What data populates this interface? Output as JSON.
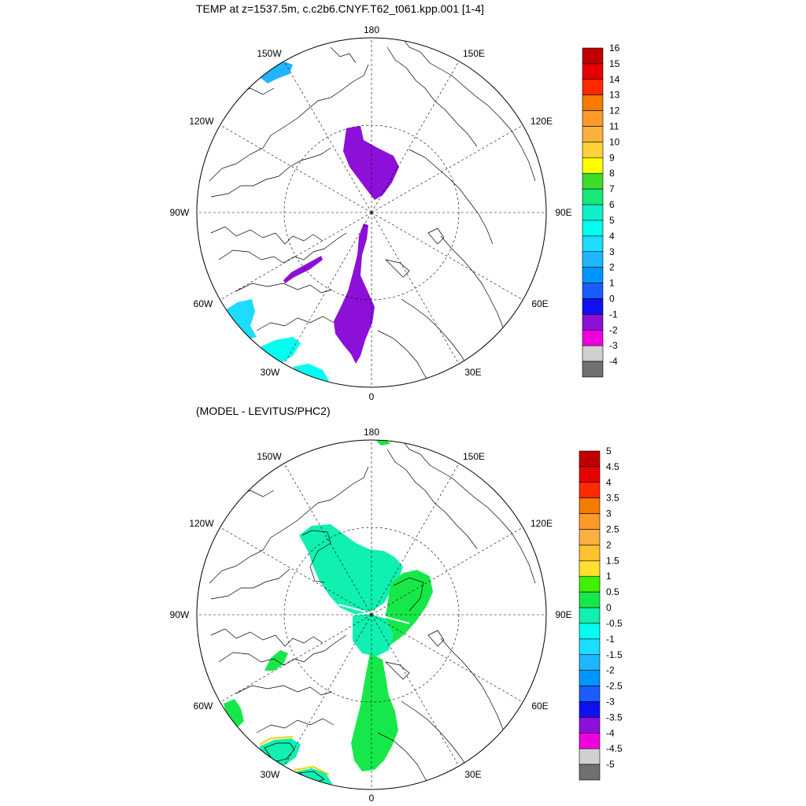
{
  "top_panel": {
    "title": "TEMP at z=1537.5m, c.c2b6.CNYF.T62_t061.kpp.001 [1-4]",
    "lon_labels": {
      "top": "180",
      "top_left": "150W",
      "top_right": "150E",
      "upper_left": "120W",
      "upper_right": "120E",
      "left": "90W",
      "right": "90E",
      "lower_left": "60W",
      "lower_right": "60E",
      "bottom_left": "30W",
      "bottom_right": "30E",
      "bottom": "0"
    },
    "colorbar": {
      "labels": [
        "16",
        "15",
        "14",
        "13",
        "12",
        "11",
        "10",
        "9",
        "8",
        "7",
        "6",
        "5",
        "4",
        "3",
        "2",
        "1",
        "0",
        "-1",
        "-2",
        "-3",
        "-4"
      ],
      "colors": [
        "#c00000",
        "#e60000",
        "#ff2a00",
        "#f57a00",
        "#fb9a2a",
        "#fbb040",
        "#ffd23a",
        "#ffff00",
        "#3ddc2a",
        "#17e87a",
        "#10f0c8",
        "#00ffee",
        "#1cdcff",
        "#1fb6ff",
        "#0096ff",
        "#1a5cff",
        "#1010f0",
        "#8c10d8",
        "#f000e0",
        "#d0d0d0",
        "#707070"
      ]
    },
    "regions": [
      {
        "name": "central-arctic-lobe",
        "value": -1,
        "color": "#8c10d8"
      },
      {
        "name": "fram-strait-plume",
        "value": -1,
        "color": "#8c10d8"
      },
      {
        "name": "baffin-strip",
        "value": -1,
        "color": "#8c10d8"
      },
      {
        "name": "bering-patch",
        "value": 3,
        "color": "#1fb6ff"
      },
      {
        "name": "labrador-patch",
        "value": 4,
        "color": "#1cdcff"
      },
      {
        "name": "north-atlantic-patch-a",
        "value": 5,
        "color": "#00ffee"
      },
      {
        "name": "north-atlantic-patch-b",
        "value": 5,
        "color": "#00ffee"
      }
    ]
  },
  "bottom_panel": {
    "title": "(MODEL - LEVITUS/PHC2)",
    "lon_labels": {
      "top": "180",
      "top_left": "150W",
      "top_right": "150E",
      "upper_left": "120W",
      "upper_right": "120E",
      "left": "90W",
      "right": "90E",
      "lower_left": "60W",
      "lower_right": "60E",
      "bottom_left": "30W",
      "bottom_right": "30E",
      "bottom": "0"
    },
    "colorbar": {
      "labels": [
        "5",
        "4.5",
        "4",
        "3.5",
        "3",
        "2.5",
        "2",
        "1.5",
        "1",
        "0.5",
        "0",
        "-0.5",
        "-1",
        "-1.5",
        "-2",
        "-2.5",
        "-3",
        "-3.5",
        "-4",
        "-4.5",
        "-5"
      ],
      "colors": [
        "#c00000",
        "#e60000",
        "#ff2a00",
        "#f57a00",
        "#fb9a2a",
        "#fbb040",
        "#ffc230",
        "#ffe030",
        "#40f000",
        "#17e84a",
        "#10f0b0",
        "#00ffee",
        "#1cdcff",
        "#1fb6ff",
        "#0096ff",
        "#1a5cff",
        "#1010f0",
        "#8c10d8",
        "#f000e0",
        "#d0d0d0",
        "#707070"
      ]
    },
    "regions": [
      {
        "name": "canada-basin-anomaly",
        "value": -0.5,
        "color": "#10f0b0"
      },
      {
        "name": "eurasian-basin-anomaly",
        "value": 0,
        "color": "#17e84a"
      },
      {
        "name": "fram-strait-anomaly",
        "value": 0,
        "color": "#17e84a"
      },
      {
        "name": "baffin-anomaly",
        "value": 0,
        "color": "#17e84a"
      },
      {
        "name": "labrador-anomaly",
        "value": 0,
        "color": "#17e84a"
      },
      {
        "name": "north-atlantic-anomaly-a",
        "value": -0.5,
        "color": "#10f0b0"
      },
      {
        "name": "north-atlantic-anomaly-b",
        "value": -0.5,
        "color": "#10f0b0"
      },
      {
        "name": "bering-anomaly",
        "value": 0,
        "color": "#17e84a"
      }
    ]
  }
}
